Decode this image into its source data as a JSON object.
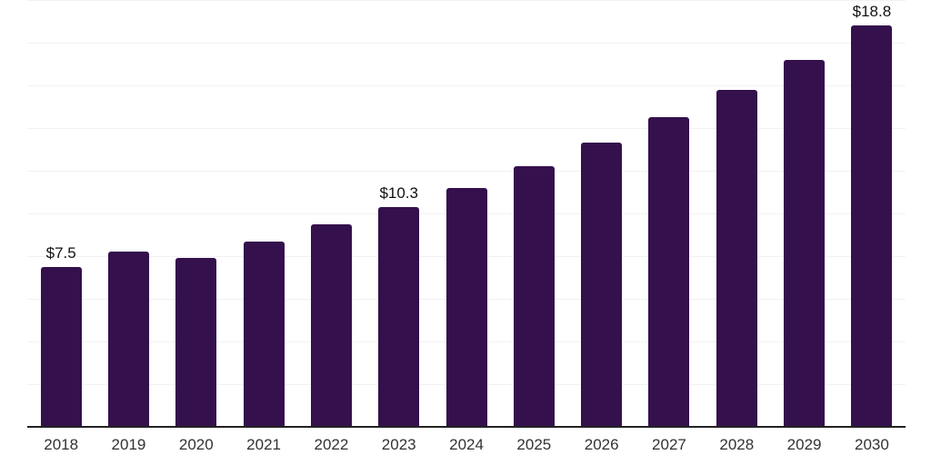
{
  "chart_data": {
    "type": "bar",
    "categories": [
      "2018",
      "2019",
      "2020",
      "2021",
      "2022",
      "2023",
      "2024",
      "2025",
      "2026",
      "2027",
      "2028",
      "2029",
      "2030"
    ],
    "values": [
      7.5,
      8.2,
      7.9,
      8.7,
      9.5,
      10.3,
      11.2,
      12.2,
      13.3,
      14.5,
      15.8,
      17.2,
      18.8
    ],
    "data_labels": [
      "$7.5",
      "",
      "",
      "",
      "",
      "$10.3",
      "",
      "",
      "",
      "",
      "",
      "",
      "$18.8"
    ],
    "title": "",
    "xlabel": "",
    "ylabel": "",
    "ylim": [
      0,
      20
    ],
    "grid_step": 2,
    "grid": "horizontal",
    "legend": "none",
    "y_axis_tick_labels_visible": false
  },
  "colors": {
    "bar": "#34104c",
    "grid": "#f2f2f2",
    "axis": "#222222",
    "tick_label": "#333333",
    "data_label": "#111111",
    "background": "#ffffff"
  }
}
